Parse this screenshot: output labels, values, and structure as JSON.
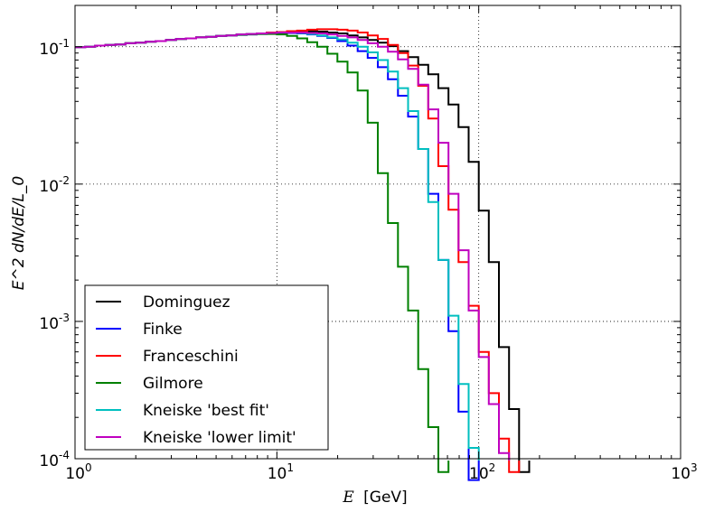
{
  "chart_data": {
    "type": "line",
    "step": true,
    "xscale": "log",
    "yscale": "log",
    "xlim": [
      1,
      1000
    ],
    "ylim": [
      0.0001,
      0.2
    ],
    "xlabel": {
      "symbol": "E",
      "unit": "[GeV]"
    },
    "ylabel": "E^2 dN/dE/L_0",
    "grid": true,
    "legend_position": "lower-left",
    "x_ticks": [
      {
        "base": "10",
        "exp": "0",
        "value": 1
      },
      {
        "base": "10",
        "exp": "1",
        "value": 10
      },
      {
        "base": "10",
        "exp": "2",
        "value": 100
      },
      {
        "base": "10",
        "exp": "3",
        "value": 1000
      }
    ],
    "y_ticks": [
      {
        "base": "10",
        "exp": "-4",
        "value": 0.0001
      },
      {
        "base": "10",
        "exp": "-3",
        "value": 0.001
      },
      {
        "base": "10",
        "exp": "-2",
        "value": 0.01
      },
      {
        "base": "10",
        "exp": "-1",
        "value": 0.1
      }
    ],
    "bin_edges": [
      1.0,
      1.122,
      1.259,
      1.413,
      1.585,
      1.778,
      1.995,
      2.239,
      2.512,
      2.818,
      3.162,
      3.548,
      3.981,
      4.467,
      5.012,
      5.623,
      6.31,
      7.079,
      7.943,
      8.913,
      10.0,
      11.22,
      12.59,
      14.13,
      15.85,
      17.78,
      19.95,
      22.39,
      25.12,
      28.18,
      31.62,
      35.48,
      39.81,
      44.67,
      50.12,
      56.23,
      63.1,
      70.79,
      79.43,
      89.13,
      100.0,
      112.2,
      125.9,
      141.3,
      158.5,
      177.8,
      199.5,
      223.9,
      251.2,
      281.8
    ],
    "series": [
      {
        "name": "Dominguez",
        "color": "#000000",
        "values": [
          0.099,
          0.1,
          0.102,
          0.103,
          0.104,
          0.106,
          0.107,
          0.109,
          0.11,
          0.112,
          0.114,
          0.115,
          0.117,
          0.118,
          0.12,
          0.121,
          0.123,
          0.124,
          0.125,
          0.127,
          0.128,
          0.129,
          0.13,
          0.13,
          0.129,
          0.127,
          0.125,
          0.121,
          0.117,
          0.112,
          0.107,
          0.101,
          0.093,
          0.084,
          0.074,
          0.063,
          0.05,
          0.038,
          0.026,
          0.0145,
          0.0064,
          0.0027,
          0.00065,
          0.00023,
          8e-05
        ]
      },
      {
        "name": "Finke",
        "color": "#0000ff",
        "values": [
          0.099,
          0.1,
          0.102,
          0.103,
          0.104,
          0.106,
          0.107,
          0.109,
          0.11,
          0.112,
          0.114,
          0.115,
          0.117,
          0.118,
          0.12,
          0.121,
          0.122,
          0.123,
          0.124,
          0.125,
          0.126,
          0.126,
          0.125,
          0.123,
          0.12,
          0.116,
          0.11,
          0.102,
          0.093,
          0.083,
          0.071,
          0.058,
          0.044,
          0.031,
          0.018,
          0.0085,
          0.0028,
          0.00085,
          0.00022,
          7e-05
        ]
      },
      {
        "name": "Franceschini",
        "color": "#ff0000",
        "values": [
          0.099,
          0.1,
          0.102,
          0.103,
          0.104,
          0.106,
          0.107,
          0.109,
          0.11,
          0.112,
          0.114,
          0.115,
          0.117,
          0.118,
          0.12,
          0.121,
          0.123,
          0.124,
          0.125,
          0.127,
          0.128,
          0.13,
          0.131,
          0.133,
          0.134,
          0.134,
          0.133,
          0.131,
          0.127,
          0.121,
          0.114,
          0.103,
          0.09,
          0.073,
          0.052,
          0.03,
          0.0135,
          0.0065,
          0.0027,
          0.0013,
          0.0006,
          0.0003,
          0.00014,
          8e-05
        ]
      },
      {
        "name": "Gilmore",
        "color": "#008000",
        "values": [
          0.099,
          0.1,
          0.102,
          0.103,
          0.104,
          0.106,
          0.107,
          0.109,
          0.11,
          0.112,
          0.114,
          0.115,
          0.117,
          0.118,
          0.12,
          0.121,
          0.122,
          0.123,
          0.124,
          0.124,
          0.123,
          0.12,
          0.115,
          0.108,
          0.1,
          0.089,
          0.078,
          0.065,
          0.048,
          0.028,
          0.012,
          0.0052,
          0.0025,
          0.0012,
          0.00045,
          0.00017,
          8e-05
        ]
      },
      {
        "name": "Kneiske 'best fit'",
        "color": "#00bfbf",
        "values": [
          0.099,
          0.1,
          0.102,
          0.103,
          0.104,
          0.106,
          0.107,
          0.109,
          0.11,
          0.112,
          0.114,
          0.115,
          0.117,
          0.118,
          0.12,
          0.121,
          0.123,
          0.124,
          0.125,
          0.126,
          0.127,
          0.127,
          0.126,
          0.124,
          0.121,
          0.117,
          0.113,
          0.107,
          0.1,
          0.091,
          0.08,
          0.066,
          0.05,
          0.034,
          0.018,
          0.0074,
          0.0028,
          0.0011,
          0.00035,
          0.00012
        ]
      },
      {
        "name": "Kneiske 'lower limit'",
        "color": "#bf00bf",
        "values": [
          0.099,
          0.1,
          0.102,
          0.103,
          0.104,
          0.106,
          0.107,
          0.109,
          0.11,
          0.112,
          0.114,
          0.115,
          0.117,
          0.118,
          0.12,
          0.121,
          0.123,
          0.124,
          0.125,
          0.126,
          0.127,
          0.127,
          0.127,
          0.126,
          0.125,
          0.123,
          0.12,
          0.117,
          0.112,
          0.106,
          0.1,
          0.092,
          0.081,
          0.069,
          0.053,
          0.035,
          0.02,
          0.0085,
          0.0033,
          0.0012,
          0.00055,
          0.00025,
          0.00011
        ]
      }
    ]
  }
}
